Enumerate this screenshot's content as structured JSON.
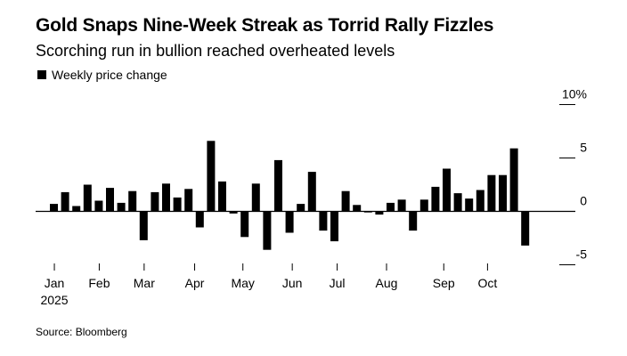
{
  "title": "Gold Snaps Nine-Week Streak as Torrid Rally Fizzles",
  "subtitle": "Scorching run in bullion reached overheated levels",
  "source": "Source: Bloomberg",
  "colors": {
    "bar": "#000000",
    "axis": "#000000",
    "background": "#ffffff"
  },
  "chart_data": {
    "type": "bar",
    "legend": [
      "Weekly price change"
    ],
    "legend_position": "top-left",
    "ylabel": "",
    "xlabel": "",
    "ylim": [
      -5,
      10
    ],
    "yticks": [
      {
        "value": 10,
        "label": "10%"
      },
      {
        "value": 5,
        "label": "5"
      },
      {
        "value": 0,
        "label": "0"
      },
      {
        "value": -5,
        "label": "-5"
      }
    ],
    "xticks": [
      {
        "label": "Jan",
        "week": 0.4
      },
      {
        "label": "Feb",
        "week": 4.4
      },
      {
        "label": "Mar",
        "week": 8.4
      },
      {
        "label": "Apr",
        "week": 12.9
      },
      {
        "label": "May",
        "week": 17.2
      },
      {
        "label": "Jun",
        "week": 21.6
      },
      {
        "label": "Jul",
        "week": 25.6
      },
      {
        "label": "Aug",
        "week": 30.0
      },
      {
        "label": "Sep",
        "week": 35.1
      },
      {
        "label": "Oct",
        "week": 39.0
      }
    ],
    "year_label": "2025",
    "series": [
      {
        "name": "Weekly price change",
        "values": [
          0.7,
          1.8,
          0.5,
          2.5,
          1.0,
          2.2,
          0.8,
          1.9,
          -2.7,
          1.8,
          2.6,
          1.3,
          2.1,
          -1.5,
          6.6,
          2.8,
          -0.2,
          -2.4,
          2.6,
          -3.6,
          4.8,
          -2.0,
          0.7,
          3.7,
          -1.8,
          -2.8,
          1.9,
          0.6,
          -0.1,
          -0.3,
          0.8,
          1.1,
          -1.8,
          1.1,
          2.3,
          4.0,
          1.7,
          1.2,
          2.0,
          3.4,
          3.4,
          5.9,
          -3.2
        ]
      }
    ]
  }
}
